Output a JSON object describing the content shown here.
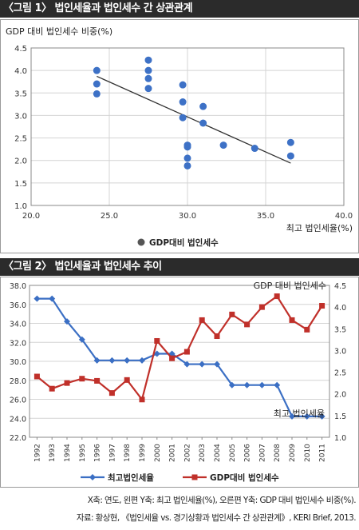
{
  "figure1": {
    "title": "〈그림 1〉 법인세율과 법인세수 간 상관관계",
    "chart_data": {
      "type": "scatter",
      "ylabel": "GDP 대비 법인세수 비중(%)",
      "xlabel": "최고 법인세율(%)",
      "xlim": [
        20.0,
        40.0
      ],
      "ylim": [
        1.0,
        4.5
      ],
      "xticks": [
        "20.0",
        "25.0",
        "30.0",
        "35.0",
        "40.0"
      ],
      "yticks": [
        "1.0",
        "1.5",
        "2.0",
        "2.5",
        "3.0",
        "3.5",
        "4.0",
        "4.5"
      ],
      "grid": true,
      "legend": "bottom",
      "series": [
        {
          "name": "GDP대비 법인세수",
          "points": [
            [
              24.2,
              4.0
            ],
            [
              24.2,
              3.7
            ],
            [
              24.2,
              3.48
            ],
            [
              27.5,
              4.23
            ],
            [
              27.5,
              4.0
            ],
            [
              27.5,
              3.82
            ],
            [
              27.5,
              3.6
            ],
            [
              29.7,
              3.68
            ],
            [
              29.7,
              3.3
            ],
            [
              29.7,
              2.95
            ],
            [
              30.0,
              2.34
            ],
            [
              30.0,
              2.3
            ],
            [
              30.0,
              2.05
            ],
            [
              30.0,
              1.88
            ],
            [
              31.0,
              3.2
            ],
            [
              31.0,
              2.83
            ],
            [
              32.3,
              2.34
            ],
            [
              34.3,
              2.27
            ],
            [
              36.6,
              2.4
            ],
            [
              36.6,
              2.1
            ]
          ]
        }
      ],
      "trendline": [
        [
          24.2,
          3.87
        ],
        [
          36.6,
          1.94
        ]
      ]
    }
  },
  "figure2": {
    "title": "〈그림 2〉 법인세율과 법인세수 추이",
    "chart_data": {
      "type": "line",
      "x": [
        "1992",
        "1993",
        "1994",
        "1995",
        "1996",
        "1997",
        "1998",
        "1999",
        "2000",
        "2001",
        "2002",
        "2003",
        "2004",
        "2005",
        "2006",
        "2007",
        "2008",
        "2009",
        "2010",
        "2011"
      ],
      "yleft_lim": [
        22.0,
        38.0
      ],
      "yleft_ticks": [
        "22.0",
        "24.0",
        "26.0",
        "28.0",
        "30.0",
        "32.0",
        "34.0",
        "36.0",
        "38.0"
      ],
      "yright_lim": [
        1.0,
        4.5
      ],
      "yright_ticks": [
        "1.0",
        "1.5",
        "2.0",
        "2.5",
        "3.0",
        "3.5",
        "4.0",
        "4.5"
      ],
      "grid": true,
      "legend": "bottom",
      "annotation_right": "GDP 대비 법인세수",
      "annotation_left": "최고 법인세율",
      "series": [
        {
          "name": "최고법인세율",
          "axis": "left",
          "color": "#3b6fc4",
          "values": [
            36.6,
            36.6,
            34.2,
            32.3,
            30.1,
            30.1,
            30.1,
            30.1,
            30.8,
            30.8,
            29.7,
            29.7,
            29.7,
            27.5,
            27.5,
            27.5,
            27.5,
            24.2,
            24.2,
            24.2
          ]
        },
        {
          "name": "GDP대비 법인세수",
          "axis": "right",
          "color": "#c0302a",
          "values": [
            2.4,
            2.12,
            2.25,
            2.35,
            2.3,
            2.02,
            2.32,
            1.87,
            3.22,
            2.82,
            2.97,
            3.7,
            3.33,
            3.83,
            3.6,
            4.0,
            4.25,
            3.7,
            3.48,
            4.03
          ]
        }
      ]
    }
  },
  "footnote": {
    "line1": "X축: 연도, 왼편 Y축: 최고 법인세율(%), 오른편 Y축: GDP 대비 법인세수 비중(%).",
    "line2": "자료: 황상현, 《법인세율 vs. 경기상황과 법인세수 간 상관관계》, KERI Brief, 2013."
  }
}
